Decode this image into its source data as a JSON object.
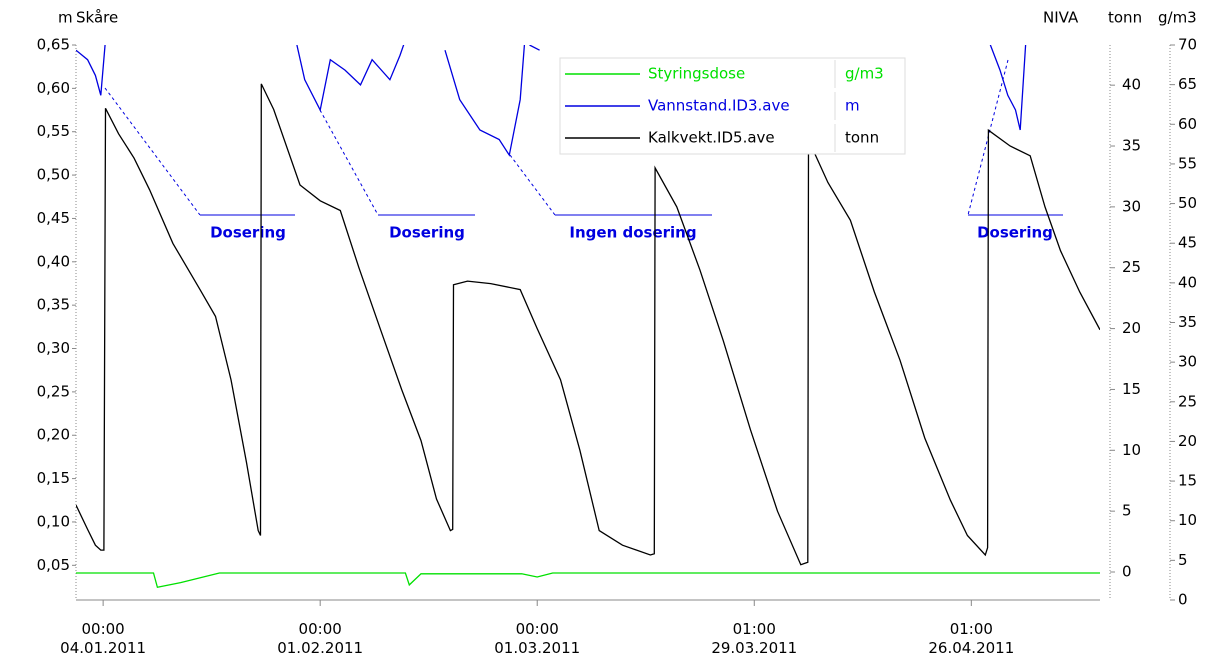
{
  "chart_data": {
    "type": "line",
    "y_label": "m",
    "title": "Skåre",
    "source_label": "NIVA",
    "y2_label": "tonn",
    "y3_label": "g/m3",
    "xlim": [
      -3.5,
      128.6
    ],
    "xticks": [
      {
        "value": 0,
        "label": "00:00\n04.01.2011"
      },
      {
        "value": 28,
        "label": "00:00\n01.02.2011"
      },
      {
        "value": 56,
        "label": "00:00\n01.03.2011"
      },
      {
        "value": 84,
        "label": "01:00\n29.03.2011"
      },
      {
        "value": 112,
        "label": "01:00\n26.04.2011"
      }
    ],
    "ylim": [
      0.01,
      0.65
    ],
    "yticks": [
      {
        "value": 0.05,
        "label": "0,05"
      },
      {
        "value": 0.1,
        "label": "0,10"
      },
      {
        "value": 0.15,
        "label": "0,15"
      },
      {
        "value": 0.2,
        "label": "0,20"
      },
      {
        "value": 0.25,
        "label": "0,25"
      },
      {
        "value": 0.3,
        "label": "0,30"
      },
      {
        "value": 0.35,
        "label": "0,35"
      },
      {
        "value": 0.4,
        "label": "0,40"
      },
      {
        "value": 0.45,
        "label": "0,45"
      },
      {
        "value": 0.5,
        "label": "0,50"
      },
      {
        "value": 0.55,
        "label": "0,55"
      },
      {
        "value": 0.6,
        "label": "0,60"
      },
      {
        "value": 0.65,
        "label": "0,65"
      }
    ],
    "y2lim": [
      -2.3,
      43.3
    ],
    "y2ticks": [
      0,
      5,
      10,
      15,
      20,
      25,
      30,
      35,
      40
    ],
    "y3lim": [
      0,
      70
    ],
    "y3ticks": [
      0,
      5,
      10,
      15,
      20,
      25,
      30,
      35,
      40,
      45,
      50,
      55,
      60,
      65,
      70
    ],
    "series": [
      {
        "name": "Styringsdose",
        "unit": "g/m3",
        "color": "#00e000",
        "axis": "y3",
        "x": [
          -3.5,
          6.5,
          7,
          10,
          15,
          39,
          39.5,
          41,
          54,
          56,
          58,
          128.6
        ],
        "values": [
          3.4,
          3.4,
          1.6,
          2.2,
          3.4,
          3.4,
          1.9,
          3.3,
          3.3,
          2.9,
          3.4,
          3.4
        ]
      },
      {
        "name": "Vannstand.ID3.ave",
        "unit": "m",
        "color": "#0000e0",
        "axis": "y",
        "x": [
          -3.5,
          -2,
          -1,
          -0.3,
          0.3,
          12,
          25,
          26,
          28,
          29.3,
          31.2,
          33.2,
          34.7,
          37,
          38.3,
          39,
          41,
          44.1,
          46,
          48.6,
          51.1,
          52.4,
          53.8,
          54.4,
          54.7,
          55,
          56.3,
          80,
          114.2,
          115.7,
          116.7,
          117.7,
          118.3,
          119
        ],
        "values": [
          0.644,
          0.633,
          0.615,
          0.592,
          0.656,
          null,
          0.65,
          0.61,
          0.575,
          0.633,
          0.621,
          0.604,
          0.633,
          0.61,
          0.638,
          0.656,
          null,
          0.644,
          0.587,
          0.552,
          0.541,
          0.523,
          0.587,
          0.656,
          null,
          0.65,
          0.644,
          null,
          0.656,
          0.621,
          0.592,
          0.575,
          0.552,
          0.65
        ]
      },
      {
        "name": "Kalkvekt.ID5.ave",
        "unit": "tonn",
        "color": "#000000",
        "axis": "y2",
        "x": [
          -3.5,
          -2,
          -1,
          -0.3,
          0.1,
          0.2,
          0.3,
          2,
          4,
          6,
          9,
          12.5,
          14.5,
          16.5,
          18.5,
          20,
          20.3,
          20.4,
          22,
          25.4,
          28,
          30.6,
          33,
          35.8,
          38.5,
          41,
          43,
          44.8,
          45.1,
          45.2,
          47,
          50,
          53.8,
          56,
          59,
          61.5,
          64,
          67,
          70.6,
          71.1,
          71.2,
          74,
          77,
          80,
          83.5,
          87,
          90,
          90.9,
          91,
          93.5,
          96.4,
          99.5,
          102.8,
          106,
          109.3,
          111.5,
          113.8,
          114.1,
          114.2,
          117,
          119.6,
          121.5,
          123.5,
          126,
          128.6
        ],
        "values": [
          5.5,
          3.5,
          2.2,
          1.8,
          1.8,
          20,
          38.1,
          36,
          34,
          31.4,
          27,
          23.2,
          21,
          15.8,
          9,
          3.4,
          3.0,
          40.1,
          38,
          31.8,
          30.5,
          29.7,
          25,
          19.9,
          15,
          10.8,
          6,
          3.4,
          3.5,
          23.6,
          23.9,
          23.7,
          23.2,
          20,
          15.8,
          10,
          3.4,
          2.2,
          1.4,
          1.5,
          33.2,
          30,
          24.8,
          19,
          11.7,
          5,
          0.6,
          0.8,
          35.5,
          32,
          28.9,
          23,
          17.4,
          11,
          5.9,
          3,
          1.4,
          2,
          36.3,
          35,
          34.2,
          30,
          26.4,
          23,
          19.9
        ]
      }
    ],
    "annotations": [
      "Dosering",
      "Dosering",
      "Ingen dosering",
      "Dosering"
    ]
  }
}
